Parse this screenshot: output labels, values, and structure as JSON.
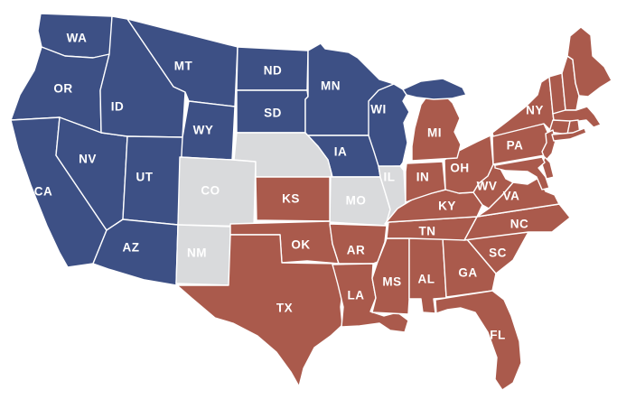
{
  "map": {
    "colors": {
      "blue": "#3D5085",
      "red": "#AA5A4C",
      "gray": "#D9DADC",
      "border": "#FFFFFF",
      "label": "#FFFFFF",
      "background": "#FFFFFF"
    },
    "states": [
      {
        "abbr": "WA",
        "label": "WA",
        "party": "blue",
        "labeled": true
      },
      {
        "abbr": "OR",
        "label": "OR",
        "party": "blue",
        "labeled": true
      },
      {
        "abbr": "CA",
        "label": "CA",
        "party": "blue",
        "labeled": true
      },
      {
        "abbr": "NV",
        "label": "NV",
        "party": "blue",
        "labeled": true
      },
      {
        "abbr": "ID",
        "label": "ID",
        "party": "blue",
        "labeled": true
      },
      {
        "abbr": "MT",
        "label": "MT",
        "party": "blue",
        "labeled": true
      },
      {
        "abbr": "WY",
        "label": "WY",
        "party": "blue",
        "labeled": true
      },
      {
        "abbr": "UT",
        "label": "UT",
        "party": "blue",
        "labeled": true
      },
      {
        "abbr": "AZ",
        "label": "AZ",
        "party": "blue",
        "labeled": true
      },
      {
        "abbr": "ND",
        "label": "ND",
        "party": "blue",
        "labeled": true
      },
      {
        "abbr": "SD",
        "label": "SD",
        "party": "blue",
        "labeled": true
      },
      {
        "abbr": "MN",
        "label": "MN",
        "party": "blue",
        "labeled": true
      },
      {
        "abbr": "WI",
        "label": "WI",
        "party": "blue",
        "labeled": true
      },
      {
        "abbr": "IA",
        "label": "IA",
        "party": "blue",
        "labeled": true
      },
      {
        "abbr": "CO",
        "label": "CO",
        "party": "gray",
        "labeled": true
      },
      {
        "abbr": "NM",
        "label": "NM",
        "party": "gray",
        "labeled": true
      },
      {
        "abbr": "NE",
        "label": "",
        "party": "gray",
        "labeled": false
      },
      {
        "abbr": "MO",
        "label": "MO",
        "party": "gray",
        "labeled": true
      },
      {
        "abbr": "IL",
        "label": "IL",
        "party": "gray",
        "labeled": true
      },
      {
        "abbr": "KS",
        "label": "KS",
        "party": "red",
        "labeled": true
      },
      {
        "abbr": "OK",
        "label": "OK",
        "party": "red",
        "labeled": true
      },
      {
        "abbr": "TX",
        "label": "TX",
        "party": "red",
        "labeled": true
      },
      {
        "abbr": "AR",
        "label": "AR",
        "party": "red",
        "labeled": true
      },
      {
        "abbr": "LA",
        "label": "LA",
        "party": "red",
        "labeled": true
      },
      {
        "abbr": "MS",
        "label": "MS",
        "party": "red",
        "labeled": true
      },
      {
        "abbr": "AL",
        "label": "AL",
        "party": "red",
        "labeled": true
      },
      {
        "abbr": "GA",
        "label": "GA",
        "party": "red",
        "labeled": true
      },
      {
        "abbr": "FL",
        "label": "FL",
        "party": "red",
        "labeled": true
      },
      {
        "abbr": "SC",
        "label": "SC",
        "party": "red",
        "labeled": true
      },
      {
        "abbr": "NC",
        "label": "NC",
        "party": "red",
        "labeled": true
      },
      {
        "abbr": "TN",
        "label": "TN",
        "party": "red",
        "labeled": true
      },
      {
        "abbr": "KY",
        "label": "KY",
        "party": "red",
        "labeled": true
      },
      {
        "abbr": "VA",
        "label": "VA",
        "party": "red",
        "labeled": true
      },
      {
        "abbr": "WV",
        "label": "WV",
        "party": "red",
        "labeled": true
      },
      {
        "abbr": "OH",
        "label": "OH",
        "party": "red",
        "labeled": true
      },
      {
        "abbr": "IN",
        "label": "IN",
        "party": "red",
        "labeled": true
      },
      {
        "abbr": "MI",
        "label": "MI",
        "party": "red",
        "labeled": true
      },
      {
        "abbr": "PA",
        "label": "PA",
        "party": "red",
        "labeled": true
      },
      {
        "abbr": "NY",
        "label": "NY",
        "party": "red",
        "labeled": true
      },
      {
        "abbr": "VT",
        "label": "",
        "party": "red",
        "labeled": false
      },
      {
        "abbr": "NH",
        "label": "",
        "party": "red",
        "labeled": false
      },
      {
        "abbr": "ME",
        "label": "",
        "party": "red",
        "labeled": false
      },
      {
        "abbr": "MA",
        "label": "",
        "party": "red",
        "labeled": false
      },
      {
        "abbr": "CT",
        "label": "",
        "party": "red",
        "labeled": false
      },
      {
        "abbr": "RI",
        "label": "",
        "party": "red",
        "labeled": false
      },
      {
        "abbr": "NJ",
        "label": "",
        "party": "red",
        "labeled": false
      },
      {
        "abbr": "DE",
        "label": "",
        "party": "red",
        "labeled": false
      },
      {
        "abbr": "MD",
        "label": "",
        "party": "red",
        "labeled": false
      }
    ],
    "extra_shapes": [
      {
        "id": "MI-UP",
        "party": "blue"
      },
      {
        "id": "LONG-ISLAND",
        "party": "red"
      }
    ]
  }
}
